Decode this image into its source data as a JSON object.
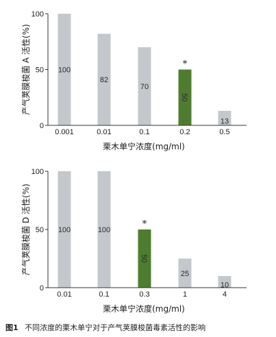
{
  "caption": {
    "label": "图1",
    "text": "不同浓度的栗木单宁对于产气荚膜梭菌毒素活性的影响"
  },
  "colors": {
    "gray_bar": "#c4c8cc",
    "green_bar": "#4f7d2f",
    "axis": "#333333"
  },
  "chart_data": [
    {
      "type": "bar",
      "ylabel": "产气荚膜梭菌 A 活性(%)",
      "xlabel": "栗木单宁浓度(mg/ml)",
      "categories": [
        "0.001",
        "0.01",
        "0.1",
        "0.2",
        "0.5"
      ],
      "values": [
        100,
        82,
        70,
        50,
        13
      ],
      "bar_labels": [
        "100",
        "82",
        "70",
        "50",
        "13"
      ],
      "significant": [
        false,
        false,
        false,
        true,
        false
      ],
      "significance_mark": "*",
      "yticks": [
        "0",
        "50",
        "100"
      ],
      "ylim": [
        0,
        100
      ]
    },
    {
      "type": "bar",
      "ylabel": "产气荚膜梭菌 D 活性(%)",
      "xlabel": "栗木单宁浓度(mg/ml)",
      "categories": [
        "0.01",
        "0.1",
        "0.3",
        "1",
        "4"
      ],
      "values": [
        100,
        100,
        50,
        25,
        10
      ],
      "bar_labels": [
        "100",
        "100",
        "50",
        "25",
        "10"
      ],
      "significant": [
        false,
        false,
        true,
        false,
        false
      ],
      "significance_mark": "*",
      "yticks": [
        "0",
        "50",
        "100"
      ],
      "ylim": [
        0,
        100
      ]
    }
  ]
}
